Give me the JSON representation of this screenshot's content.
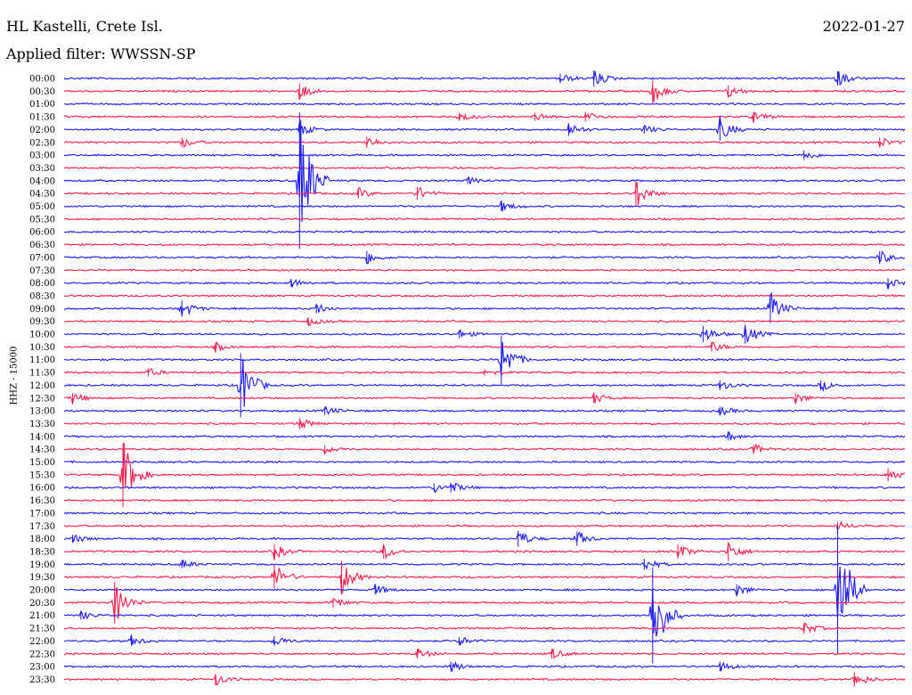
{
  "header": {
    "station": "HL Kastelli, Crete Isl.",
    "filter": "Applied filter: WWSSN-SP",
    "date": "2022-01-27"
  },
  "chart_data": {
    "type": "helicorder",
    "ylabel": "HHZ - 15000",
    "colors": {
      "odd": "#1a1aff",
      "even": "#ff1a4a"
    },
    "times": [
      "00:00",
      "00:30",
      "01:00",
      "01:30",
      "02:00",
      "02:30",
      "03:00",
      "03:30",
      "04:00",
      "04:30",
      "05:00",
      "05:30",
      "06:00",
      "06:30",
      "07:00",
      "07:30",
      "08:00",
      "08:30",
      "09:00",
      "09:30",
      "10:00",
      "10:30",
      "11:00",
      "11:30",
      "12:00",
      "12:30",
      "13:00",
      "13:30",
      "14:00",
      "14:30",
      "15:00",
      "15:30",
      "16:00",
      "16:30",
      "17:00",
      "17:30",
      "18:00",
      "18:30",
      "19:00",
      "19:30",
      "20:00",
      "20:30",
      "21:00",
      "21:30",
      "22:00",
      "22:30",
      "23:00",
      "23:30"
    ],
    "events": [
      {
        "row": 0,
        "t": 0.59,
        "a": 6
      },
      {
        "row": 0,
        "t": 0.63,
        "a": 10
      },
      {
        "row": 0,
        "t": 0.92,
        "a": 9
      },
      {
        "row": 1,
        "t": 0.28,
        "a": 10
      },
      {
        "row": 1,
        "t": 0.7,
        "a": 14
      },
      {
        "row": 1,
        "t": 0.79,
        "a": 7
      },
      {
        "row": 3,
        "t": 0.47,
        "a": 5
      },
      {
        "row": 3,
        "t": 0.56,
        "a": 5
      },
      {
        "row": 3,
        "t": 0.62,
        "a": 6
      },
      {
        "row": 3,
        "t": 0.82,
        "a": 6
      },
      {
        "row": 4,
        "t": 0.28,
        "a": 8
      },
      {
        "row": 4,
        "t": 0.6,
        "a": 8
      },
      {
        "row": 4,
        "t": 0.69,
        "a": 5
      },
      {
        "row": 4,
        "t": 0.78,
        "a": 14
      },
      {
        "row": 5,
        "t": 0.14,
        "a": 6
      },
      {
        "row": 5,
        "t": 0.36,
        "a": 7
      },
      {
        "row": 5,
        "t": 0.97,
        "a": 6
      },
      {
        "row": 6,
        "t": 0.88,
        "a": 6
      },
      {
        "row": 8,
        "t": 0.28,
        "a": 85
      },
      {
        "row": 8,
        "t": 0.48,
        "a": 4
      },
      {
        "row": 9,
        "t": 0.35,
        "a": 6
      },
      {
        "row": 9,
        "t": 0.42,
        "a": 8
      },
      {
        "row": 9,
        "t": 0.68,
        "a": 16
      },
      {
        "row": 10,
        "t": 0.52,
        "a": 6
      },
      {
        "row": 14,
        "t": 0.36,
        "a": 8
      },
      {
        "row": 14,
        "t": 0.97,
        "a": 8
      },
      {
        "row": 16,
        "t": 0.27,
        "a": 5
      },
      {
        "row": 16,
        "t": 0.98,
        "a": 6
      },
      {
        "row": 18,
        "t": 0.14,
        "a": 10
      },
      {
        "row": 18,
        "t": 0.3,
        "a": 6
      },
      {
        "row": 18,
        "t": 0.84,
        "a": 18
      },
      {
        "row": 19,
        "t": 0.29,
        "a": 5
      },
      {
        "row": 20,
        "t": 0.47,
        "a": 5
      },
      {
        "row": 20,
        "t": 0.76,
        "a": 10
      },
      {
        "row": 20,
        "t": 0.81,
        "a": 12
      },
      {
        "row": 21,
        "t": 0.18,
        "a": 5
      },
      {
        "row": 21,
        "t": 0.77,
        "a": 6
      },
      {
        "row": 22,
        "t": 0.52,
        "a": 30
      },
      {
        "row": 23,
        "t": 0.1,
        "a": 5
      },
      {
        "row": 23,
        "t": 0.5,
        "a": 4
      },
      {
        "row": 24,
        "t": 0.21,
        "a": 40
      },
      {
        "row": 24,
        "t": 0.78,
        "a": 6
      },
      {
        "row": 24,
        "t": 0.9,
        "a": 6
      },
      {
        "row": 25,
        "t": 0.01,
        "a": 6
      },
      {
        "row": 25,
        "t": 0.63,
        "a": 6
      },
      {
        "row": 25,
        "t": 0.87,
        "a": 6
      },
      {
        "row": 26,
        "t": 0.31,
        "a": 5
      },
      {
        "row": 26,
        "t": 0.78,
        "a": 5
      },
      {
        "row": 27,
        "t": 0.28,
        "a": 7
      },
      {
        "row": 28,
        "t": 0.79,
        "a": 5
      },
      {
        "row": 29,
        "t": 0.31,
        "a": 5
      },
      {
        "row": 29,
        "t": 0.82,
        "a": 6
      },
      {
        "row": 31,
        "t": 0.07,
        "a": 40
      },
      {
        "row": 31,
        "t": 0.98,
        "a": 8
      },
      {
        "row": 32,
        "t": 0.44,
        "a": 5
      },
      {
        "row": 32,
        "t": 0.46,
        "a": 6
      },
      {
        "row": 35,
        "t": 0.92,
        "a": 5
      },
      {
        "row": 36,
        "t": 0.01,
        "a": 5
      },
      {
        "row": 36,
        "t": 0.54,
        "a": 10
      },
      {
        "row": 36,
        "t": 0.61,
        "a": 9
      },
      {
        "row": 37,
        "t": 0.25,
        "a": 9
      },
      {
        "row": 37,
        "t": 0.38,
        "a": 9
      },
      {
        "row": 37,
        "t": 0.73,
        "a": 9
      },
      {
        "row": 37,
        "t": 0.79,
        "a": 12
      },
      {
        "row": 38,
        "t": 0.14,
        "a": 5
      },
      {
        "row": 38,
        "t": 0.69,
        "a": 7
      },
      {
        "row": 39,
        "t": 0.25,
        "a": 16
      },
      {
        "row": 39,
        "t": 0.33,
        "a": 20
      },
      {
        "row": 40,
        "t": 0.37,
        "a": 6
      },
      {
        "row": 40,
        "t": 0.8,
        "a": 7
      },
      {
        "row": 40,
        "t": 0.92,
        "a": 80
      },
      {
        "row": 41,
        "t": 0.06,
        "a": 26
      },
      {
        "row": 41,
        "t": 0.32,
        "a": 6
      },
      {
        "row": 42,
        "t": 0.02,
        "a": 5
      },
      {
        "row": 42,
        "t": 0.7,
        "a": 60
      },
      {
        "row": 43,
        "t": 0.88,
        "a": 7
      },
      {
        "row": 44,
        "t": 0.08,
        "a": 6
      },
      {
        "row": 44,
        "t": 0.25,
        "a": 6
      },
      {
        "row": 44,
        "t": 0.47,
        "a": 5
      },
      {
        "row": 45,
        "t": 0.42,
        "a": 6
      },
      {
        "row": 45,
        "t": 0.58,
        "a": 6
      },
      {
        "row": 46,
        "t": 0.46,
        "a": 6
      },
      {
        "row": 46,
        "t": 0.78,
        "a": 6
      },
      {
        "row": 47,
        "t": 0.18,
        "a": 7
      },
      {
        "row": 47,
        "t": 0.94,
        "a": 9
      }
    ]
  }
}
